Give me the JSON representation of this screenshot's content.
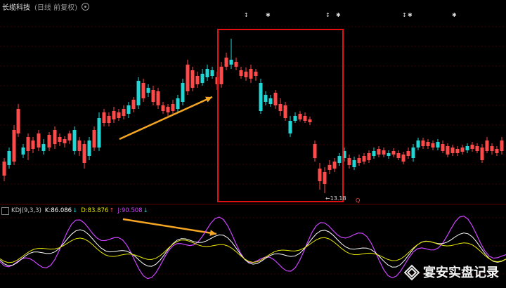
{
  "header": {
    "stock_name": "长缆科技",
    "chart_mode": "(日线 前复权)",
    "settings_icon": "gear-icon"
  },
  "top_markers": [
    "↕",
    "✱",
    "↕",
    "✱",
    "↕",
    "✱",
    "✱"
  ],
  "price_annotation": "←13.18",
  "q_marker": "Q",
  "indicator": {
    "name": "KDJ(9,3,3)",
    "k_label": "K:86.086",
    "k_arrow": "↓",
    "d_label": "D:83.876",
    "d_arrow": "↑",
    "j_label": "J:90.508",
    "j_arrow": "↓",
    "colors": {
      "k": "#ffffff",
      "d": "#e8e800",
      "j": "#cc44ff"
    }
  },
  "colors": {
    "up": "#ff4a4a",
    "down": "#22d6d6",
    "highlight_box": "#e01010",
    "arrow": "#f5a623",
    "grid": "#3a0000"
  },
  "watermark": "宴安实盘记录"
}
